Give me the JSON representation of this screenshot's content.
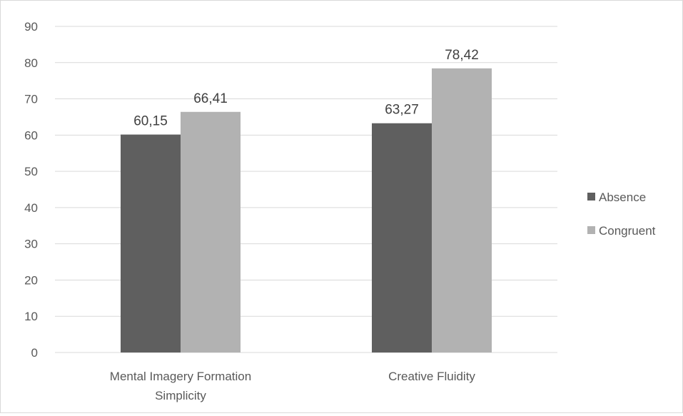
{
  "chart_data": {
    "type": "bar",
    "title": "",
    "xlabel": "",
    "ylabel": "",
    "ylim": [
      0,
      90
    ],
    "yticks": [
      "0",
      "10",
      "20",
      "30",
      "40",
      "50",
      "60",
      "70",
      "80",
      "90"
    ],
    "ytick_values": [
      0,
      10,
      20,
      30,
      40,
      50,
      60,
      70,
      80,
      90
    ],
    "grid": true,
    "legend_position": "right",
    "categories": [
      [
        "Mental Imagery Formation",
        "Simplicity"
      ],
      [
        "Creative Fluidity"
      ]
    ],
    "series": [
      {
        "name": "Absence",
        "color": "#5f5f5f",
        "values": [
          60.15,
          63.27
        ],
        "labels": [
          "60,15",
          "63,27"
        ]
      },
      {
        "name": "Congruent",
        "color": "#b2b2b2",
        "values": [
          66.41,
          78.42
        ],
        "labels": [
          "66,41",
          "78,42"
        ]
      }
    ],
    "colors": {
      "grid": "#d9d9d9",
      "text": "#595959"
    }
  }
}
